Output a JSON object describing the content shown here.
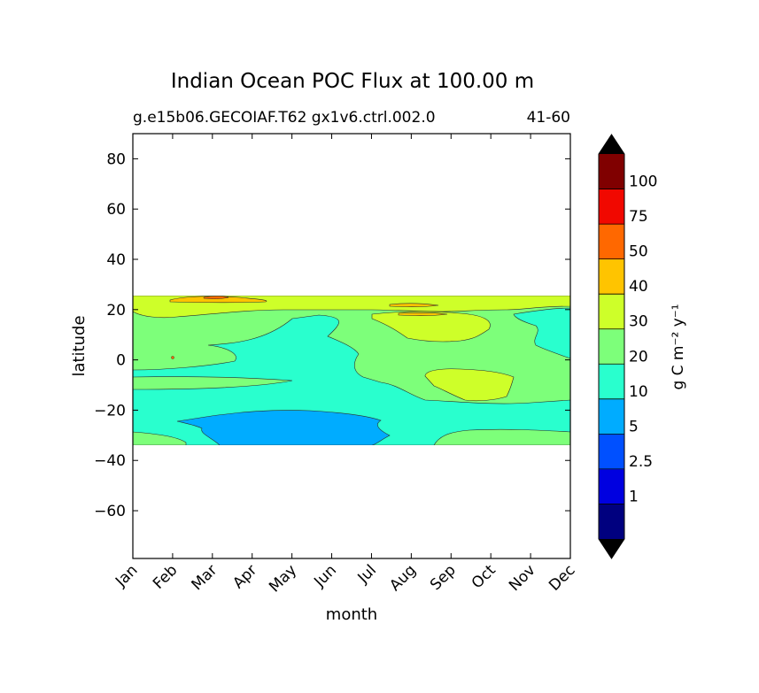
{
  "chart_data": {
    "type": "contour",
    "title": "Indian Ocean POC Flux at 100.00 m",
    "subtitle_left": "g.e15b06.GECOIAF.T62 gx1v6.ctrl.002.0",
    "subtitle_right": "41-60",
    "xlabel": "month",
    "ylabel": "latitude",
    "x_ticks": [
      "Jan",
      "Feb",
      "Mar",
      "Apr",
      "May",
      "Jun",
      "Jul",
      "Aug",
      "Sep",
      "Oct",
      "Nov",
      "Dec"
    ],
    "y_ticks": [
      80,
      60,
      40,
      20,
      0,
      -20,
      -40,
      -60
    ],
    "y_tick_labels": [
      "80",
      "60",
      "40",
      "20",
      "0",
      "−20",
      "−40",
      "−60"
    ],
    "xlim": [
      "Jan",
      "Dec"
    ],
    "ylim": [
      -79,
      90
    ],
    "data_lat_range": [
      -34,
      25
    ],
    "colorbar": {
      "label": "g C m⁻² y⁻¹",
      "levels": [
        "1",
        "2.5",
        "5",
        "10",
        "20",
        "30",
        "40",
        "50",
        "75",
        "100"
      ],
      "colors": [
        "#00007f",
        "#0000e0",
        "#0050ff",
        "#00acff",
        "#29ffce",
        "#7dff7a",
        "#ceff29",
        "#ffc400",
        "#ff6800",
        "#f10800",
        "#800000"
      ],
      "extend": "both",
      "under_color": "#000000",
      "over_color": "#000000"
    },
    "regions": [
      {
        "level_band": "10-20",
        "description": "broad central band"
      },
      {
        "level_band": "20-30",
        "description": "northern band and southern edges"
      },
      {
        "level_band": "30-40",
        "description": "near 20N and Aug-Oct around -10"
      },
      {
        "level_band": "5-10",
        "description": "Apr-Aug around -20 to -34"
      },
      {
        "level_band": "40-50",
        "description": "Feb-Apr near 25N"
      }
    ]
  }
}
